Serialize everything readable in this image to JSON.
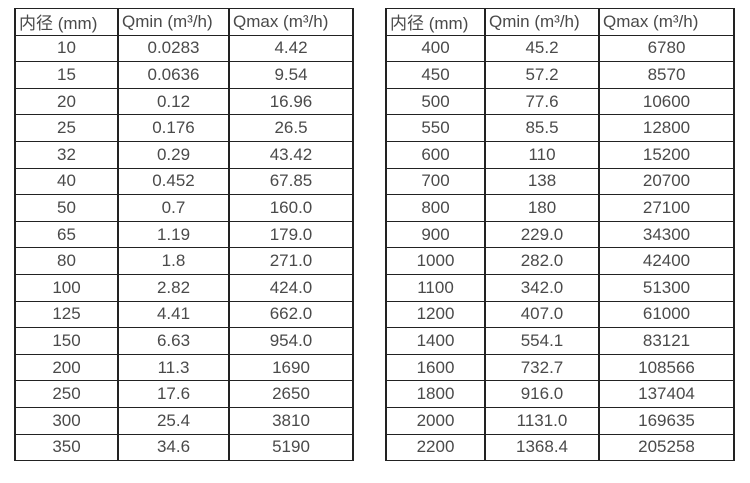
{
  "page": {
    "background": "#ffffff",
    "text_color": "#4a4a4a",
    "border_color": "#222222"
  },
  "tables": [
    {
      "name": "flow-range-table-small-diameters",
      "headers": [
        "内径 (mm)",
        "Qmin (m³/h)",
        "Qmax (m³/h)"
      ],
      "rows": [
        [
          "10",
          "0.0283",
          "4.42"
        ],
        [
          "15",
          "0.0636",
          "9.54"
        ],
        [
          "20",
          "0.12",
          "16.96"
        ],
        [
          "25",
          "0.176",
          "26.5"
        ],
        [
          "32",
          "0.29",
          "43.42"
        ],
        [
          "40",
          "0.452",
          "67.85"
        ],
        [
          "50",
          "0.7",
          "160.0"
        ],
        [
          "65",
          "1.19",
          "179.0"
        ],
        [
          "80",
          "1.8",
          "271.0"
        ],
        [
          "100",
          "2.82",
          "424.0"
        ],
        [
          "125",
          "4.41",
          "662.0"
        ],
        [
          "150",
          "6.63",
          "954.0"
        ],
        [
          "200",
          "11.3",
          "1690"
        ],
        [
          "250",
          "17.6",
          "2650"
        ],
        [
          "300",
          "25.4",
          "3810"
        ],
        [
          "350",
          "34.6",
          "5190"
        ]
      ]
    },
    {
      "name": "flow-range-table-large-diameters",
      "headers": [
        "内径 (mm)",
        "Qmin (m³/h)",
        "Qmax (m³/h)"
      ],
      "rows": [
        [
          "400",
          "45.2",
          "6780"
        ],
        [
          "450",
          "57.2",
          "8570"
        ],
        [
          "500",
          "77.6",
          "10600"
        ],
        [
          "550",
          "85.5",
          "12800"
        ],
        [
          "600",
          "110",
          "15200"
        ],
        [
          "700",
          "138",
          "20700"
        ],
        [
          "800",
          "180",
          "27100"
        ],
        [
          "900",
          "229.0",
          "34300"
        ],
        [
          "1000",
          "282.0",
          "42400"
        ],
        [
          "1100",
          "342.0",
          "51300"
        ],
        [
          "1200",
          "407.0",
          "61000"
        ],
        [
          "1400",
          "554.1",
          "83121"
        ],
        [
          "1600",
          "732.7",
          "108566"
        ],
        [
          "1800",
          "916.0",
          "137404"
        ],
        [
          "2000",
          "1131.0",
          "169635"
        ],
        [
          "2200",
          "1368.4",
          "205258"
        ]
      ]
    }
  ]
}
